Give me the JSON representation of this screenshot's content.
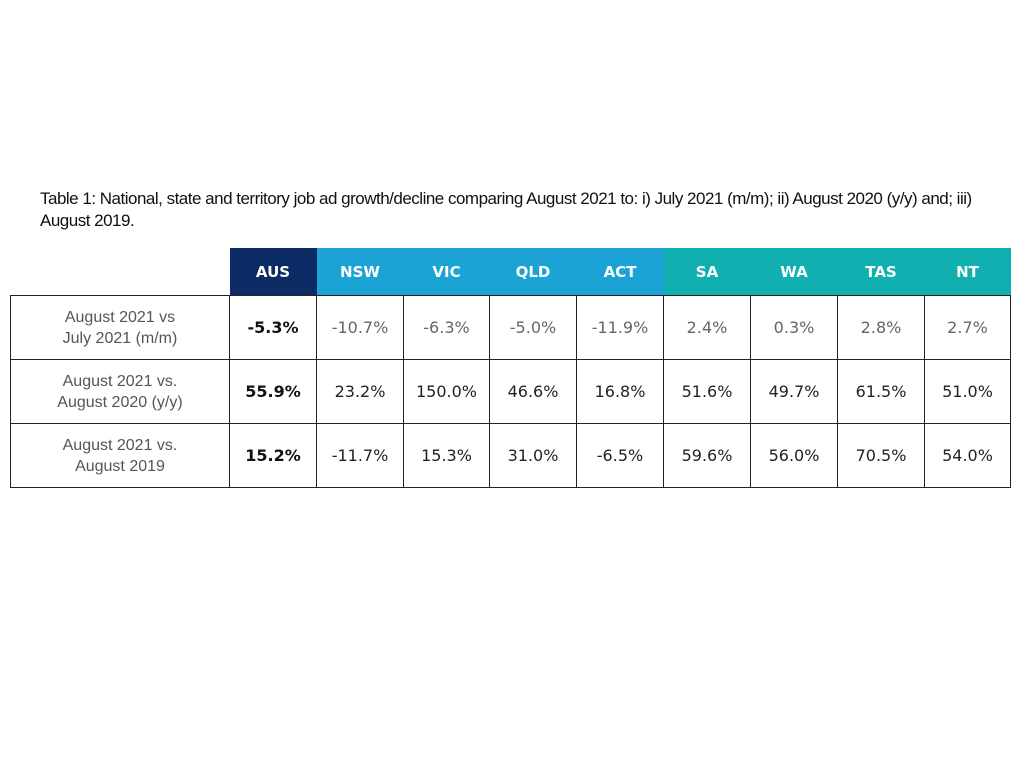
{
  "caption": "Table 1: National, state and territory job ad growth/decline comparing August 2021 to: i) July 2021 (m/m); ii) August 2020 (y/y) and; iii) August 2019.",
  "colors": {
    "aus_header": "#0c2a63",
    "state_header": "#1ba3d6",
    "territory_header": "#10b0b0",
    "border": "#222222"
  },
  "table": {
    "columns": [
      {
        "label": "AUS",
        "color": "#0c2a63"
      },
      {
        "label": "NSW",
        "color": "#1ba3d6"
      },
      {
        "label": "VIC",
        "color": "#1ba3d6"
      },
      {
        "label": "QLD",
        "color": "#1ba3d6"
      },
      {
        "label": "ACT",
        "color": "#1ba3d6"
      },
      {
        "label": "SA",
        "color": "#10b0b0"
      },
      {
        "label": "WA",
        "color": "#10b0b0"
      },
      {
        "label": "TAS",
        "color": "#10b0b0"
      },
      {
        "label": "NT",
        "color": "#10b0b0"
      }
    ],
    "rows": [
      {
        "label_line1": "August 2021 vs",
        "label_line2": "July 2021 (m/m)",
        "values": [
          "-5.3%",
          "-10.7%",
          "-6.3%",
          "-5.0%",
          "-11.9%",
          "2.4%",
          "0.3%",
          "2.8%",
          "2.7%"
        ]
      },
      {
        "label_line1": "August 2021 vs.",
        "label_line2": "August 2020 (y/y)",
        "values": [
          "55.9%",
          "23.2%",
          "150.0%",
          "46.6%",
          "16.8%",
          "51.6%",
          "49.7%",
          "61.5%",
          "51.0%"
        ]
      },
      {
        "label_line1": "August 2021 vs.",
        "label_line2": "August 2019",
        "values": [
          "15.2%",
          "-11.7%",
          "15.3%",
          "31.0%",
          "-6.5%",
          "59.6%",
          "56.0%",
          "70.5%",
          "54.0%"
        ]
      }
    ]
  }
}
